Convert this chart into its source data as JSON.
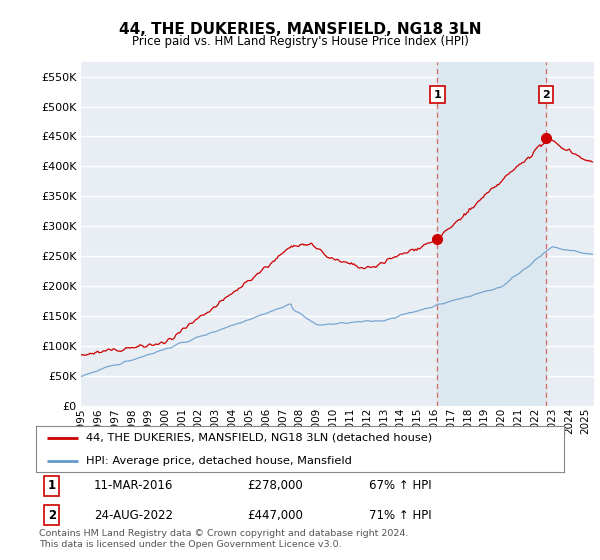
{
  "title": "44, THE DUKERIES, MANSFIELD, NG18 3LN",
  "subtitle": "Price paid vs. HM Land Registry's House Price Index (HPI)",
  "ytick_values": [
    0,
    50000,
    100000,
    150000,
    200000,
    250000,
    300000,
    350000,
    400000,
    450000,
    500000,
    550000
  ],
  "ylim": [
    0,
    575000
  ],
  "xlim_start": 1995.0,
  "xlim_end": 2025.5,
  "legend1_label": "44, THE DUKERIES, MANSFIELD, NG18 3LN (detached house)",
  "legend2_label": "HPI: Average price, detached house, Mansfield",
  "marker1_date": 2016.19,
  "marker1_label": "1",
  "marker1_price": 278000,
  "marker2_date": 2022.65,
  "marker2_label": "2",
  "marker2_price": 447000,
  "footnote": "Contains HM Land Registry data © Crown copyright and database right 2024.\nThis data is licensed under the Open Government Licence v3.0.",
  "line_color_red": "#cc0000",
  "line_color_blue": "#6699cc",
  "vline_color": "#dd6666",
  "background_color": "#e8eef4",
  "shade_color": "#dce8f0",
  "grid_color": "#ffffff"
}
